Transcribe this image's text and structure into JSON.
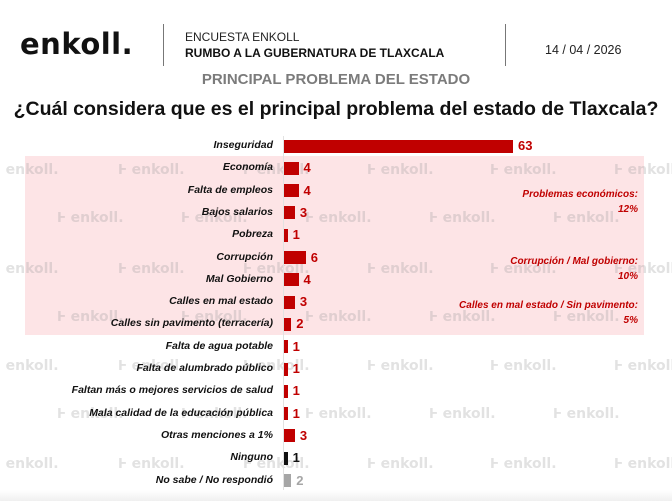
{
  "header": {
    "logo": "enkoll.",
    "survey_label": "ENCUESTA ENKOLL",
    "survey_title": "RUMBO A LA GUBERNATURA DE TLAXCALA",
    "date": "14 / 04 / 2026",
    "section": "PRINCIPAL PROBLEMA DEL ESTADO",
    "question": "¿Cuál considera que es el principal problema del estado de Tlaxcala?"
  },
  "watermark": {
    "text": "enkoll."
  },
  "colors": {
    "primary": "#c00000",
    "ninguno": "#111111",
    "nosabe": "#a6a6a6",
    "band": "#fde4e6"
  },
  "chart_data": {
    "type": "bar",
    "orientation": "horizontal",
    "title": "¿Cuál considera que es el principal problema del estado de Tlaxcala?",
    "subtitle": "PRINCIPAL PROBLEMA DEL ESTADO",
    "xlabel": "",
    "ylabel": "",
    "unit": "%",
    "xlim": [
      0,
      63
    ],
    "grid": false,
    "categories": [
      "Inseguridad",
      "Economía",
      "Falta de empleos",
      "Bajos salarios",
      "Pobreza",
      "Corrupción",
      "Mal Gobierno",
      "Calles en mal estado",
      "Calles sin pavimento (terracería)",
      "Falta de agua potable",
      "Falta de alumbrado público",
      "Faltan más o mejores servicios de salud",
      "Mala calidad de la educación pública",
      "Otras menciones a 1%",
      "Ninguno",
      "No sabe / No respondió"
    ],
    "values": [
      63,
      4,
      4,
      3,
      1,
      6,
      4,
      3,
      2,
      1,
      1,
      1,
      1,
      3,
      1,
      2
    ],
    "bar_colors": [
      "primary",
      "primary",
      "primary",
      "primary",
      "primary",
      "primary",
      "primary",
      "primary",
      "primary",
      "primary",
      "primary",
      "primary",
      "primary",
      "primary",
      "ninguno",
      "nosabe"
    ],
    "data_labels": [
      "63",
      "4",
      "4",
      "3",
      "1",
      "6",
      "4",
      "3",
      "2",
      "1",
      "1",
      "1",
      "1",
      "3",
      "1",
      "2"
    ],
    "groups": [
      {
        "label": "Problemas económicos:",
        "total": "12%",
        "rows": [
          1,
          4
        ]
      },
      {
        "label": "Corrupción / Mal gobierno:",
        "total": "10%",
        "rows": [
          5,
          6
        ]
      },
      {
        "label": "Calles en mal estado / Sin pavimento:",
        "total": "5%",
        "rows": [
          7,
          8
        ]
      }
    ]
  }
}
